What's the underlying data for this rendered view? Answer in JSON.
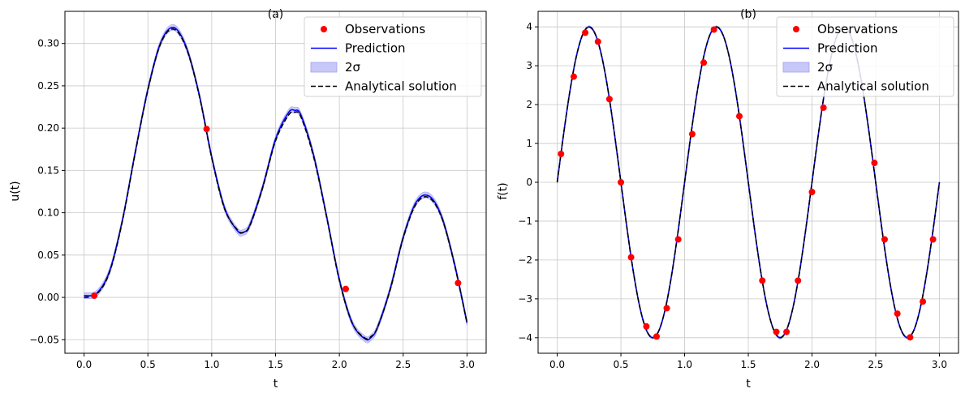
{
  "colors": {
    "observation": "#ff0000",
    "prediction": "#0000ff",
    "band_fill": "#c8c8f8",
    "band_edge": "#a0a0f0",
    "analytical": "#000000",
    "grid": "#c8c8c8"
  },
  "chart_data": [
    {
      "type": "line",
      "title": "(a)",
      "xlabel": "t",
      "ylabel": "u(t)",
      "xlim": [
        -0.15,
        3.15
      ],
      "ylim": [
        -0.066,
        0.338
      ],
      "x_ticks": [
        0.0,
        0.5,
        1.0,
        1.5,
        2.0,
        2.5,
        3.0
      ],
      "x_tick_labels": [
        "0.0",
        "0.5",
        "1.0",
        "1.5",
        "2.0",
        "2.5",
        "3.0"
      ],
      "y_ticks": [
        -0.05,
        0.0,
        0.05,
        0.1,
        0.15,
        0.2,
        0.25,
        0.3
      ],
      "y_tick_labels": [
        "−0.05",
        "0.00",
        "0.05",
        "0.10",
        "0.15",
        "0.20",
        "0.25",
        "0.30"
      ],
      "grid": true,
      "legend_position": "top-right",
      "legend": [
        "Observations",
        "Prediction",
        "2σ",
        "Analytical solution"
      ],
      "series": [
        {
          "name": "Analytical solution",
          "style": "dashed",
          "x": [
            0.0,
            0.1,
            0.2,
            0.3,
            0.4,
            0.5,
            0.6,
            0.7,
            0.8,
            0.9,
            1.0,
            1.1,
            1.2,
            1.25,
            1.3,
            1.4,
            1.5,
            1.6,
            1.65,
            1.7,
            1.8,
            1.9,
            2.0,
            2.1,
            2.2,
            2.25,
            2.3,
            2.4,
            2.5,
            2.6,
            2.7,
            2.8,
            2.9,
            3.0
          ],
          "y": [
            0.0,
            0.004,
            0.03,
            0.09,
            0.17,
            0.245,
            0.3,
            0.317,
            0.295,
            0.24,
            0.165,
            0.105,
            0.08,
            0.077,
            0.085,
            0.13,
            0.185,
            0.215,
            0.219,
            0.213,
            0.165,
            0.095,
            0.02,
            -0.03,
            -0.048,
            -0.046,
            -0.035,
            0.01,
            0.07,
            0.11,
            0.118,
            0.095,
            0.04,
            -0.03
          ]
        },
        {
          "name": "Prediction",
          "style": "solid",
          "band": 0.0035,
          "x": [
            0.0,
            0.1,
            0.2,
            0.3,
            0.4,
            0.5,
            0.6,
            0.7,
            0.8,
            0.9,
            1.0,
            1.1,
            1.2,
            1.25,
            1.3,
            1.4,
            1.5,
            1.6,
            1.65,
            1.7,
            1.8,
            1.9,
            2.0,
            2.1,
            2.2,
            2.25,
            2.3,
            2.4,
            2.5,
            2.6,
            2.7,
            2.8,
            2.9,
            3.0
          ],
          "y": [
            0.002,
            0.005,
            0.031,
            0.091,
            0.171,
            0.246,
            0.301,
            0.319,
            0.296,
            0.241,
            0.166,
            0.106,
            0.079,
            0.077,
            0.086,
            0.131,
            0.187,
            0.218,
            0.221,
            0.215,
            0.167,
            0.096,
            0.021,
            -0.03,
            -0.049,
            -0.047,
            -0.035,
            0.011,
            0.071,
            0.112,
            0.12,
            0.096,
            0.041,
            -0.03
          ]
        }
      ],
      "observations": {
        "name": "Observations",
        "x": [
          0.08,
          0.96,
          2.05,
          2.93
        ],
        "y": [
          0.002,
          0.199,
          0.01,
          0.017
        ]
      }
    },
    {
      "type": "line",
      "title": "(b)",
      "xlabel": "t",
      "ylabel": "f(t)",
      "xlim": [
        -0.15,
        3.15
      ],
      "ylim": [
        -4.4,
        4.4
      ],
      "x_ticks": [
        0.0,
        0.5,
        1.0,
        1.5,
        2.0,
        2.5,
        3.0
      ],
      "x_tick_labels": [
        "0.0",
        "0.5",
        "1.0",
        "1.5",
        "2.0",
        "2.5",
        "3.0"
      ],
      "y_ticks": [
        -4,
        -3,
        -2,
        -1,
        0,
        1,
        2,
        3,
        4
      ],
      "y_tick_labels": [
        "−4",
        "−3",
        "−2",
        "−1",
        "0",
        "1",
        "2",
        "3",
        "4"
      ],
      "grid": true,
      "legend_position": "top-right",
      "legend": [
        "Observations",
        "Prediction",
        "2σ",
        "Analytical solution"
      ],
      "series": [
        {
          "name": "Analytical solution",
          "style": "dashed",
          "x": [
            0.0,
            0.05,
            0.1,
            0.15,
            0.2,
            0.25,
            0.3,
            0.35,
            0.4,
            0.45,
            0.5,
            0.55,
            0.6,
            0.65,
            0.7,
            0.75,
            0.8,
            0.85,
            0.9,
            0.95,
            1.0,
            1.05,
            1.1,
            1.15,
            1.2,
            1.25,
            1.3,
            1.35,
            1.4,
            1.45,
            1.5,
            1.55,
            1.6,
            1.65,
            1.7,
            1.75,
            1.8,
            1.85,
            1.9,
            1.95,
            2.0,
            2.05,
            2.1,
            2.15,
            2.2,
            2.25,
            2.3,
            2.35,
            2.4,
            2.45,
            2.5,
            2.55,
            2.6,
            2.65,
            2.7,
            2.75,
            2.8,
            2.85,
            2.9,
            2.95,
            3.0
          ],
          "y": [
            0.0,
            1.236,
            2.351,
            3.236,
            3.804,
            4.0,
            3.804,
            3.236,
            2.351,
            1.236,
            0.0,
            -1.236,
            -2.351,
            -3.236,
            -3.804,
            -4.0,
            -3.804,
            -3.236,
            -2.351,
            -1.236,
            0.0,
            1.236,
            2.351,
            3.236,
            3.804,
            4.0,
            3.804,
            3.236,
            2.351,
            1.236,
            0.0,
            -1.236,
            -2.351,
            -3.236,
            -3.804,
            -4.0,
            -3.804,
            -3.236,
            -2.351,
            -1.236,
            0.0,
            1.236,
            2.351,
            3.236,
            3.804,
            4.0,
            3.804,
            3.236,
            2.351,
            1.236,
            0.0,
            -1.236,
            -2.351,
            -3.236,
            -3.804,
            -4.0,
            -3.804,
            -3.236,
            -2.351,
            -1.236,
            0.0
          ]
        },
        {
          "name": "Prediction",
          "style": "solid",
          "band": 0.03,
          "x": [
            0.0,
            0.05,
            0.1,
            0.15,
            0.2,
            0.25,
            0.3,
            0.35,
            0.4,
            0.45,
            0.5,
            0.55,
            0.6,
            0.65,
            0.7,
            0.75,
            0.8,
            0.85,
            0.9,
            0.95,
            1.0,
            1.05,
            1.1,
            1.15,
            1.2,
            1.25,
            1.3,
            1.35,
            1.4,
            1.45,
            1.5,
            1.55,
            1.6,
            1.65,
            1.7,
            1.75,
            1.8,
            1.85,
            1.9,
            1.95,
            2.0,
            2.05,
            2.1,
            2.15,
            2.2,
            2.25,
            2.3,
            2.35,
            2.4,
            2.45,
            2.5,
            2.55,
            2.6,
            2.65,
            2.7,
            2.75,
            2.8,
            2.85,
            2.9,
            2.95,
            3.0
          ],
          "y": [
            0.0,
            1.236,
            2.351,
            3.236,
            3.804,
            4.0,
            3.804,
            3.236,
            2.351,
            1.236,
            0.0,
            -1.236,
            -2.351,
            -3.236,
            -3.804,
            -4.0,
            -3.804,
            -3.236,
            -2.351,
            -1.236,
            0.0,
            1.236,
            2.351,
            3.236,
            3.804,
            4.0,
            3.804,
            3.236,
            2.351,
            1.236,
            0.0,
            -1.236,
            -2.351,
            -3.236,
            -3.804,
            -4.0,
            -3.804,
            -3.236,
            -2.351,
            -1.236,
            0.0,
            1.236,
            2.351,
            3.236,
            3.804,
            4.0,
            3.804,
            3.236,
            2.351,
            1.236,
            0.0,
            -1.236,
            -2.351,
            -3.236,
            -3.804,
            -4.0,
            -3.804,
            -3.236,
            -2.351,
            -1.236,
            0.0
          ]
        }
      ],
      "observations": {
        "name": "Observations",
        "x": [
          0.03,
          0.13,
          0.22,
          0.32,
          0.41,
          0.5,
          0.58,
          0.7,
          0.78,
          0.86,
          0.95,
          1.06,
          1.15,
          1.23,
          1.43,
          1.61,
          1.72,
          1.8,
          1.89,
          2.0,
          2.09,
          2.49,
          2.57,
          2.67,
          2.77,
          2.87,
          2.95
        ],
        "y": [
          0.73,
          2.72,
          3.85,
          3.62,
          2.14,
          0.0,
          -1.93,
          -3.71,
          -3.97,
          -3.24,
          -1.47,
          1.24,
          3.08,
          3.93,
          1.7,
          -2.53,
          -3.85,
          -3.85,
          -2.53,
          -0.25,
          1.92,
          0.5,
          -1.47,
          -3.38,
          -3.99,
          -3.07,
          -1.47
        ]
      }
    }
  ]
}
